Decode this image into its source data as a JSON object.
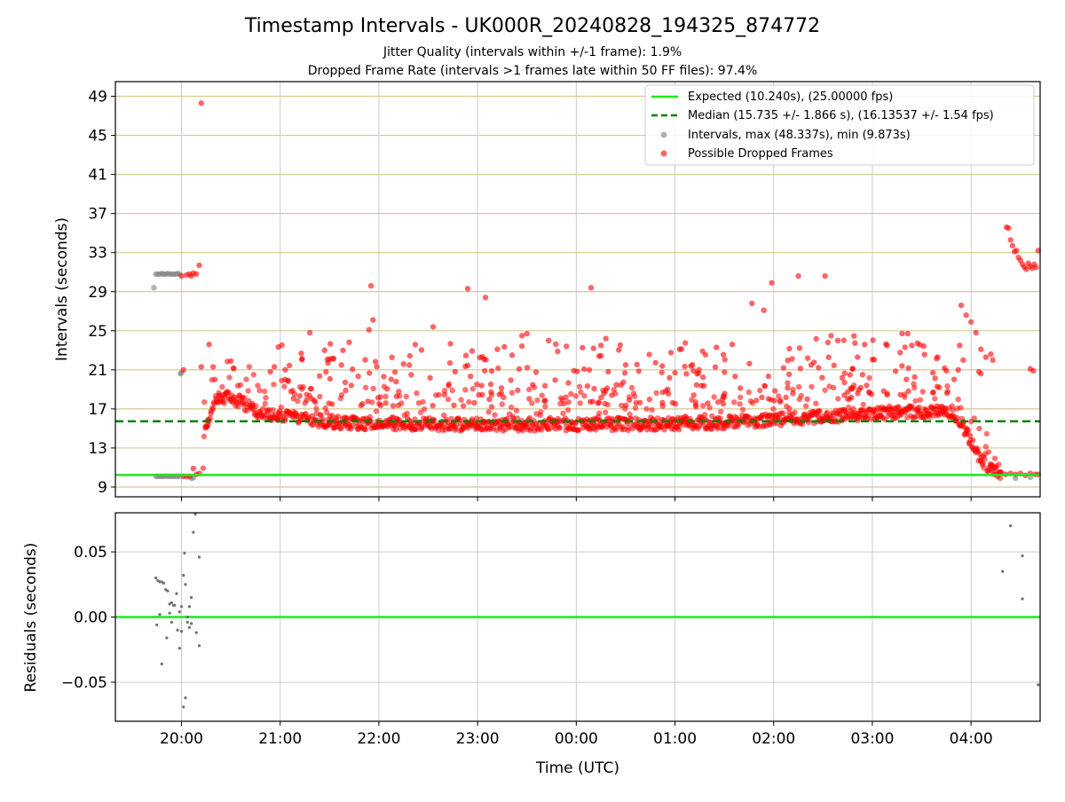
{
  "chart_data": [
    {
      "type": "scatter",
      "title": "Timestamp Intervals - UK000R_20240828_194325_874772",
      "subtitle_lines": [
        "Jitter Quality (intervals within +/-1 frame): 1.9%",
        "Dropped Frame Rate (intervals >1 frames late within 50 FF files): 97.4%"
      ],
      "ylabel": "Intervals (seconds)",
      "ylim": [
        8.0,
        50.5
      ],
      "yticks": [
        9,
        13,
        17,
        21,
        25,
        29,
        33,
        37,
        41,
        45,
        49
      ],
      "xlim_hours": [
        19.33,
        28.7
      ],
      "xticks": [
        {
          "h": 20,
          "label": "20:00"
        },
        {
          "h": 21,
          "label": "21:00"
        },
        {
          "h": 22,
          "label": "22:00"
        },
        {
          "h": 23,
          "label": "23:00"
        },
        {
          "h": 24,
          "label": "00:00"
        },
        {
          "h": 25,
          "label": "01:00"
        },
        {
          "h": 26,
          "label": "02:00"
        },
        {
          "h": 27,
          "label": "03:00"
        },
        {
          "h": 28,
          "label": "04:00"
        }
      ],
      "grid": true,
      "legend_position": "top-right",
      "reference_lines": {
        "expected": {
          "value": 10.24,
          "label": "Expected (10.240s), (25.00000 fps)",
          "color": "#1ee81e"
        },
        "median": {
          "value": 15.735,
          "label": "Median (15.735 +/- 1.866 s), (16.13537 +/- 1.54 fps)",
          "color": "#008000"
        }
      },
      "series": [
        {
          "name": "Intervals, max (48.337s), min (9.873s)",
          "color": "#808080",
          "points": [
            [
              19.72,
              29.4
            ],
            [
              19.74,
              30.8
            ],
            [
              19.76,
              30.8
            ],
            [
              19.78,
              30.8
            ],
            [
              19.8,
              30.85
            ],
            [
              19.82,
              30.8
            ],
            [
              19.84,
              30.8
            ],
            [
              19.86,
              30.85
            ],
            [
              19.88,
              30.8
            ],
            [
              19.9,
              30.8
            ],
            [
              19.92,
              30.8
            ],
            [
              19.94,
              30.8
            ],
            [
              19.96,
              30.85
            ],
            [
              19.98,
              30.8
            ],
            [
              19.74,
              10.1
            ],
            [
              19.76,
              10.1
            ],
            [
              19.78,
              10.1
            ],
            [
              19.8,
              10.1
            ],
            [
              19.82,
              10.1
            ],
            [
              19.84,
              10.12
            ],
            [
              19.86,
              10.1
            ],
            [
              19.88,
              10.1
            ],
            [
              19.9,
              10.1
            ],
            [
              19.92,
              10.1
            ],
            [
              19.94,
              10.1
            ],
            [
              19.96,
              10.12
            ],
            [
              19.98,
              10.1
            ],
            [
              19.99,
              20.6
            ],
            [
              20.0,
              20.7
            ],
            [
              20.1,
              9.9
            ],
            [
              20.12,
              9.95
            ],
            [
              28.45,
              9.9
            ],
            [
              28.6,
              10.0
            ]
          ]
        },
        {
          "name": "Possible Dropped Frames",
          "color": "#ff0000",
          "points": [
            [
              20.0,
              30.6
            ],
            [
              20.05,
              30.7
            ],
            [
              20.08,
              30.8
            ],
            [
              20.1,
              30.6
            ],
            [
              20.12,
              30.9
            ],
            [
              20.15,
              30.8
            ],
            [
              20.18,
              31.7
            ],
            [
              20.2,
              48.3
            ],
            [
              20.02,
              21.0
            ],
            [
              20.2,
              21.3
            ],
            [
              20.28,
              23.6
            ],
            [
              20.32,
              21.3
            ],
            [
              20.5,
              21.9
            ],
            [
              20.02,
              10.1
            ],
            [
              20.05,
              10.1
            ],
            [
              20.08,
              10.1
            ],
            [
              20.12,
              10.9
            ],
            [
              20.15,
              10.3
            ],
            [
              20.18,
              10.4
            ],
            [
              20.9,
              20.8
            ],
            [
              21.05,
              20.0
            ],
            [
              21.08,
              19.9
            ],
            [
              21.3,
              24.8
            ],
            [
              21.45,
              23.0
            ],
            [
              21.5,
              22.1
            ],
            [
              21.62,
              21.5
            ],
            [
              21.72,
              19.4
            ],
            [
              21.9,
              25.1
            ],
            [
              21.92,
              29.6
            ],
            [
              21.94,
              26.1
            ],
            [
              22.05,
              20.3
            ],
            [
              22.25,
              21.6
            ],
            [
              22.55,
              25.4
            ],
            [
              22.72,
              21.7
            ],
            [
              22.9,
              29.3
            ],
            [
              23.08,
              28.4
            ],
            [
              23.2,
              23.1
            ],
            [
              23.35,
              22.5
            ],
            [
              23.45,
              24.5
            ],
            [
              23.5,
              24.7
            ],
            [
              23.72,
              24.0
            ],
            [
              23.9,
              23.4
            ],
            [
              24.15,
              29.4
            ],
            [
              24.25,
              23.5
            ],
            [
              24.3,
              24.2
            ],
            [
              24.5,
              21.5
            ],
            [
              25.0,
              20.7
            ],
            [
              25.28,
              22.9
            ],
            [
              25.42,
              23.3
            ],
            [
              25.58,
              23.6
            ],
            [
              25.78,
              27.8
            ],
            [
              25.9,
              27.1
            ],
            [
              25.98,
              29.9
            ],
            [
              26.1,
              21.2
            ],
            [
              26.25,
              30.6
            ],
            [
              26.52,
              30.6
            ],
            [
              26.55,
              23.8
            ],
            [
              26.65,
              24.0
            ],
            [
              26.8,
              21.1
            ],
            [
              26.85,
              22.3
            ],
            [
              26.9,
              20.5
            ],
            [
              27.15,
              23.5
            ],
            [
              27.3,
              21.4
            ],
            [
              27.4,
              23.5
            ],
            [
              27.75,
              20.9
            ],
            [
              27.9,
              27.6
            ],
            [
              27.95,
              26.6
            ],
            [
              28.0,
              25.9
            ],
            [
              28.05,
              24.8
            ],
            [
              28.1,
              23.1
            ],
            [
              28.15,
              22.3
            ],
            [
              28.1,
              20.6
            ],
            [
              28.2,
              22.6
            ],
            [
              28.22,
              22.0
            ],
            [
              27.92,
              22.0
            ],
            [
              28.08,
              20.8
            ],
            [
              28.36,
              35.6
            ],
            [
              28.38,
              35.5
            ],
            [
              28.4,
              34.3
            ],
            [
              28.42,
              33.7
            ],
            [
              28.44,
              33.1
            ],
            [
              28.46,
              33.2
            ],
            [
              28.48,
              32.5
            ],
            [
              28.5,
              32.2
            ],
            [
              28.52,
              31.8
            ],
            [
              28.54,
              31.5
            ],
            [
              28.56,
              31.3
            ],
            [
              28.58,
              31.9
            ],
            [
              28.6,
              31.6
            ],
            [
              28.62,
              31.4
            ],
            [
              28.64,
              31.8
            ],
            [
              28.66,
              31.5
            ],
            [
              28.68,
              33.2
            ],
            [
              28.6,
              21.1
            ],
            [
              28.63,
              20.9
            ],
            [
              28.3,
              10.5
            ],
            [
              28.35,
              10.3
            ],
            [
              28.4,
              10.4
            ],
            [
              28.45,
              10.3
            ],
            [
              28.5,
              10.4
            ],
            [
              28.55,
              10.2
            ],
            [
              28.6,
              10.4
            ],
            [
              28.65,
              10.3
            ],
            [
              28.68,
              10.3
            ]
          ]
        }
      ],
      "band": {
        "name": "Possible Dropped Frames",
        "trend": [
          [
            20.22,
            14.6
          ],
          [
            20.26,
            15.4
          ],
          [
            20.3,
            17.0
          ],
          [
            20.34,
            17.8
          ],
          [
            20.4,
            18.1
          ],
          [
            20.5,
            18.2
          ],
          [
            20.6,
            17.7
          ],
          [
            20.7,
            17.2
          ],
          [
            20.8,
            16.6
          ],
          [
            21.0,
            16.3
          ],
          [
            21.3,
            15.9
          ],
          [
            21.6,
            15.6
          ],
          [
            22.0,
            15.5
          ],
          [
            23.0,
            15.4
          ],
          [
            24.0,
            15.4
          ],
          [
            25.0,
            15.5
          ],
          [
            25.5,
            15.6
          ],
          [
            26.0,
            15.9
          ],
          [
            26.5,
            16.2
          ],
          [
            27.0,
            16.5
          ],
          [
            27.5,
            16.7
          ],
          [
            27.8,
            16.8
          ],
          [
            27.86,
            16.2
          ],
          [
            27.92,
            15.2
          ],
          [
            28.0,
            13.6
          ],
          [
            28.08,
            12.2
          ],
          [
            28.15,
            11.2
          ],
          [
            28.22,
            10.6
          ],
          [
            28.3,
            10.4
          ]
        ]
      }
    },
    {
      "type": "scatter",
      "ylabel": "Residuals (seconds)",
      "ylim": [
        -0.08,
        0.08
      ],
      "yticks": [
        {
          "v": 0.05,
          "label": "0.05"
        },
        {
          "v": 0.0,
          "label": "0.00"
        },
        {
          "v": -0.05,
          "label": "−0.05"
        }
      ],
      "xlabel": "Time (UTC)",
      "zero_line_color": "#1ee81e",
      "series": [
        {
          "name": "",
          "color": "#707070",
          "points": [
            [
              19.74,
              0.03
            ],
            [
              19.76,
              0.028
            ],
            [
              19.78,
              0.027
            ],
            [
              19.8,
              0.027
            ],
            [
              19.82,
              0.026
            ],
            [
              19.84,
              0.021
            ],
            [
              19.86,
              0.02
            ],
            [
              19.88,
              0.01
            ],
            [
              19.9,
              0.011
            ],
            [
              19.92,
              0.009
            ],
            [
              19.95,
              0.018
            ],
            [
              19.98,
              0.004
            ],
            [
              20.0,
              0.008
            ],
            [
              20.02,
              0.032
            ],
            [
              20.04,
              0.025
            ],
            [
              20.06,
              0.0
            ],
            [
              20.08,
              0.008
            ],
            [
              20.1,
              0.015
            ],
            [
              20.12,
              0.065
            ],
            [
              20.14,
              0.079
            ],
            [
              19.75,
              -0.006
            ],
            [
              19.78,
              0.002
            ],
            [
              19.8,
              -0.036
            ],
            [
              19.85,
              -0.016
            ],
            [
              19.88,
              0.003
            ],
            [
              19.9,
              -0.004
            ],
            [
              19.93,
              0.009
            ],
            [
              19.96,
              -0.01
            ],
            [
              19.98,
              -0.024
            ],
            [
              20.0,
              -0.011
            ],
            [
              20.02,
              -0.069
            ],
            [
              20.04,
              -0.062
            ],
            [
              20.06,
              -0.004
            ],
            [
              20.08,
              -0.008
            ],
            [
              20.1,
              -0.005
            ],
            [
              20.15,
              -0.012
            ],
            [
              20.18,
              -0.022
            ],
            [
              20.18,
              0.046
            ],
            [
              20.03,
              0.049
            ],
            [
              28.32,
              0.035
            ],
            [
              28.4,
              0.07
            ],
            [
              28.52,
              0.047
            ],
            [
              28.52,
              0.014
            ],
            [
              28.68,
              -0.052
            ]
          ]
        }
      ]
    }
  ]
}
